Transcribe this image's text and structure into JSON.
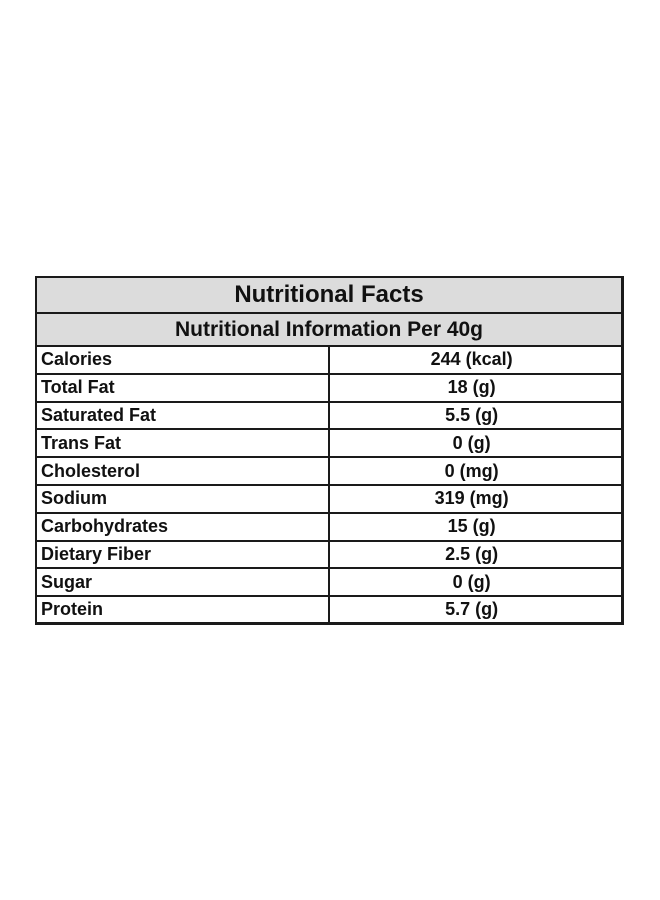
{
  "title": "Nutritional Facts",
  "subtitle": "Nutritional Information Per 40g",
  "rows": [
    {
      "label": "Calories",
      "value": "244 (kcal)"
    },
    {
      "label": "Total Fat",
      "value": "18 (g)"
    },
    {
      "label": "Saturated Fat",
      "value": "5.5 (g)"
    },
    {
      "label": "Trans Fat",
      "value": "0 (g)"
    },
    {
      "label": "Cholesterol",
      "value": "0 (mg)"
    },
    {
      "label": "Sodium",
      "value": "319 (mg)"
    },
    {
      "label": "Carbohydrates",
      "value": "15 (g)"
    },
    {
      "label": "Dietary Fiber",
      "value": "2.5 (g)"
    },
    {
      "label": "Sugar",
      "value": "0 (g)"
    },
    {
      "label": "Protein",
      "value": "5.7 (g)"
    }
  ],
  "colors": {
    "header_background": "#dcdcdc",
    "border": "#1a1a1a",
    "text": "#111111",
    "page_background": "#ffffff"
  }
}
